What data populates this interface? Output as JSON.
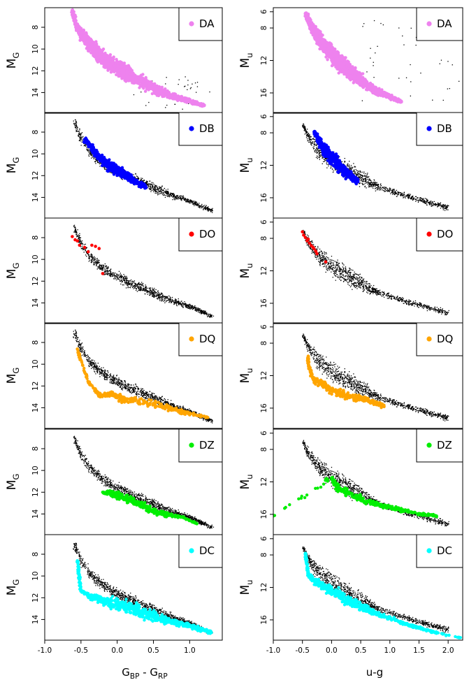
{
  "figure": {
    "left_x_label": {
      "base": "G",
      "sub1": "BP",
      "sep": " - ",
      "base2": "G",
      "sub2": "RP"
    },
    "right_x_label": "u-g",
    "left_y_label": {
      "base": "M",
      "sub": "G"
    },
    "right_y_label": {
      "base": "M",
      "sub": "u"
    }
  },
  "chart_data": [
    {
      "type": "scatter",
      "panel": "left",
      "class": "DA",
      "color": "#ee82ee",
      "show_background": false,
      "xlabel": "",
      "ylabel": "M_G",
      "xlim": [
        -1.0,
        1.45
      ],
      "ylim": [
        15.9,
        6.2
      ],
      "xticks": [],
      "yticks": [
        8,
        10,
        12,
        14
      ],
      "ytick_labels": [
        "8",
        "10",
        "12",
        "14"
      ],
      "legend": "DA",
      "legend_position": "top-right",
      "x": [
        -0.62,
        -0.58,
        -0.55,
        -0.5,
        -0.45,
        -0.4,
        -0.35,
        -0.3,
        -0.25,
        -0.2,
        -0.15,
        -0.1,
        -0.05,
        0.0,
        0.05,
        0.1,
        0.15,
        0.2,
        0.3,
        0.4,
        0.5,
        0.6,
        0.7,
        0.8,
        0.9,
        1.0,
        1.1,
        1.2
      ],
      "y": [
        6.6,
        7.4,
        8.1,
        8.6,
        9.0,
        9.4,
        9.8,
        10.2,
        10.5,
        10.8,
        11.1,
        11.3,
        11.5,
        11.7,
        11.9,
        12.1,
        12.3,
        12.5,
        12.9,
        13.2,
        13.6,
        13.9,
        14.2,
        14.4,
        14.6,
        14.8,
        15.0,
        15.2
      ],
      "spread": [
        0.5,
        0.6,
        0.7,
        0.8,
        0.9,
        1.0,
        1.0,
        1.0,
        1.0,
        1.0,
        1.0,
        1.0,
        1.0,
        1.0,
        1.0,
        1.0,
        1.0,
        0.9,
        0.8,
        0.8,
        0.7,
        0.6,
        0.5,
        0.4,
        0.3,
        0.3,
        0.2,
        0.2
      ]
    },
    {
      "type": "scatter",
      "panel": "right",
      "class": "DA",
      "color": "#ee82ee",
      "show_background": false,
      "xlabel": "",
      "ylabel": "M_u",
      "xlim": [
        -1.0,
        2.25
      ],
      "ylim": [
        18.5,
        5.5
      ],
      "xticks": [],
      "yticks": [
        6,
        8,
        12,
        16
      ],
      "ytick_labels": [
        "6",
        "8",
        "12",
        "16"
      ],
      "legend": "DA",
      "legend_position": "top-right",
      "x": [
        -0.45,
        -0.4,
        -0.35,
        -0.3,
        -0.25,
        -0.2,
        -0.15,
        -0.1,
        -0.05,
        0.0,
        0.05,
        0.1,
        0.15,
        0.2,
        0.25,
        0.3,
        0.35,
        0.4,
        0.45,
        0.5,
        0.6,
        0.7,
        0.8,
        0.9,
        1.0,
        1.1,
        1.2
      ],
      "y": [
        6.2,
        7.0,
        7.8,
        8.5,
        9.0,
        9.5,
        10.0,
        10.4,
        10.8,
        11.2,
        11.6,
        12.0,
        12.3,
        12.6,
        12.9,
        13.2,
        13.5,
        13.8,
        14.1,
        14.4,
        15.0,
        15.5,
        15.9,
        16.2,
        16.5,
        16.8,
        17.1
      ],
      "spread": [
        0.6,
        0.8,
        1.0,
        1.2,
        1.4,
        1.5,
        1.6,
        1.6,
        1.6,
        1.6,
        1.6,
        1.6,
        1.6,
        1.5,
        1.5,
        1.4,
        1.4,
        1.3,
        1.2,
        1.1,
        0.9,
        0.7,
        0.6,
        0.5,
        0.4,
        0.3,
        0.3
      ]
    },
    {
      "type": "scatter",
      "panel": "left",
      "class": "DB",
      "color": "#0000ff",
      "show_background": true,
      "xlabel": "",
      "ylabel": "M_G",
      "xlim": [
        -1.0,
        1.45
      ],
      "ylim": [
        15.9,
        6.2
      ],
      "xticks": [],
      "yticks": [
        8,
        10,
        12,
        14
      ],
      "ytick_labels": [
        "8",
        "10",
        "12",
        "14"
      ],
      "legend": "DB",
      "legend_position": "top-right",
      "x": [
        -0.45,
        -0.4,
        -0.35,
        -0.3,
        -0.25,
        -0.2,
        -0.15,
        -0.1,
        -0.05,
        0.0,
        0.05,
        0.1,
        0.15,
        0.2,
        0.3,
        0.4
      ],
      "y": [
        8.7,
        9.0,
        9.5,
        9.9,
        10.3,
        10.6,
        10.9,
        11.1,
        11.3,
        11.5,
        11.7,
        11.9,
        12.1,
        12.3,
        12.7,
        13.1
      ],
      "spread": [
        0.3,
        0.4,
        0.5,
        0.6,
        0.6,
        0.6,
        0.6,
        0.6,
        0.6,
        0.6,
        0.6,
        0.6,
        0.5,
        0.5,
        0.4,
        0.3
      ]
    },
    {
      "type": "scatter",
      "panel": "right",
      "class": "DB",
      "color": "#0000ff",
      "show_background": true,
      "xlabel": "",
      "ylabel": "M_u",
      "xlim": [
        -1.0,
        2.25
      ],
      "ylim": [
        18.5,
        5.5
      ],
      "xticks": [],
      "yticks": [
        6,
        8,
        12,
        16
      ],
      "ytick_labels": [
        "6",
        "8",
        "12",
        "16"
      ],
      "legend": "DB",
      "legend_position": "top-right",
      "x": [
        -0.3,
        -0.25,
        -0.2,
        -0.15,
        -0.1,
        -0.05,
        0.0,
        0.05,
        0.1,
        0.15,
        0.2,
        0.25,
        0.3,
        0.35,
        0.4,
        0.45
      ],
      "y": [
        7.9,
        8.5,
        9.2,
        9.8,
        10.2,
        10.6,
        11.0,
        11.4,
        11.8,
        12.2,
        12.6,
        12.9,
        13.2,
        13.5,
        13.8,
        14.0
      ],
      "spread": [
        0.4,
        0.6,
        0.8,
        1.0,
        1.1,
        1.2,
        1.3,
        1.3,
        1.3,
        1.2,
        1.1,
        1.0,
        0.9,
        0.7,
        0.6,
        0.4
      ]
    },
    {
      "type": "scatter",
      "panel": "left",
      "class": "DO",
      "color": "#ff0000",
      "show_background": true,
      "xlabel": "",
      "ylabel": "M_G",
      "xlim": [
        -1.0,
        1.45
      ],
      "ylim": [
        15.9,
        6.2
      ],
      "xticks": [],
      "yticks": [
        8,
        10,
        12,
        14
      ],
      "ytick_labels": [
        "8",
        "10",
        "12",
        "14"
      ],
      "legend": "DO",
      "legend_position": "top-right",
      "x": [
        -0.62,
        -0.58,
        -0.55,
        -0.52,
        -0.45,
        -0.4,
        -0.35,
        -0.3,
        -0.25,
        -0.2
      ],
      "y": [
        7.9,
        8.2,
        8.3,
        8.7,
        8.9,
        9.3,
        8.7,
        8.8,
        9.0,
        11.3
      ]
    },
    {
      "type": "scatter",
      "panel": "right",
      "class": "DO",
      "color": "#ff0000",
      "show_background": true,
      "xlabel": "",
      "ylabel": "M_u",
      "xlim": [
        -1.0,
        2.25
      ],
      "ylim": [
        18.5,
        5.5
      ],
      "xticks": [],
      "yticks": [
        6,
        8,
        12,
        16
      ],
      "ytick_labels": [
        "6",
        "8",
        "12",
        "16"
      ],
      "legend": "DO",
      "legend_position": "top-right",
      "x": [
        -0.5,
        -0.48,
        -0.45,
        -0.42,
        -0.4,
        -0.38,
        -0.35,
        -0.32,
        -0.3,
        -0.27,
        -0.25,
        -0.1
      ],
      "y": [
        7.2,
        7.6,
        7.9,
        8.3,
        8.1,
        8.6,
        8.9,
        9.1,
        9.3,
        9.6,
        9.9,
        10.9
      ]
    },
    {
      "type": "scatter",
      "panel": "left",
      "class": "DQ",
      "color": "#ffa500",
      "show_background": true,
      "xlabel": "",
      "ylabel": "M_G",
      "xlim": [
        -1.0,
        1.45
      ],
      "ylim": [
        15.9,
        6.2
      ],
      "xticks": [],
      "yticks": [
        8,
        10,
        12,
        14
      ],
      "ytick_labels": [
        "8",
        "10",
        "12",
        "14"
      ],
      "legend": "DQ",
      "legend_position": "top-right",
      "x": [
        -0.55,
        -0.45,
        -0.4,
        -0.3,
        -0.25,
        -0.2,
        -0.15,
        -0.1,
        -0.05,
        0.0,
        0.05,
        0.1,
        0.2,
        0.3,
        0.4,
        0.5,
        0.6,
        0.7,
        0.8,
        0.9,
        1.0,
        1.1,
        1.25
      ],
      "y": [
        8.6,
        10.7,
        11.6,
        12.4,
        12.8,
        12.9,
        12.8,
        12.7,
        12.8,
        13.0,
        13.1,
        13.2,
        13.3,
        13.4,
        13.5,
        13.6,
        13.8,
        14.0,
        14.2,
        14.4,
        14.5,
        14.7,
        14.9
      ],
      "spread": [
        0.1,
        0.2,
        0.3,
        0.3,
        0.3,
        0.3,
        0.3,
        0.3,
        0.3,
        0.3,
        0.4,
        0.4,
        0.4,
        0.5,
        0.5,
        0.5,
        0.4,
        0.4,
        0.3,
        0.3,
        0.2,
        0.2,
        0.1
      ]
    },
    {
      "type": "scatter",
      "panel": "right",
      "class": "DQ",
      "color": "#ffa500",
      "show_background": true,
      "xlabel": "",
      "ylabel": "M_u",
      "xlim": [
        -1.0,
        2.25
      ],
      "ylim": [
        18.5,
        5.5
      ],
      "xticks": [],
      "yticks": [
        6,
        8,
        12,
        16
      ],
      "ytick_labels": [
        "6",
        "8",
        "12",
        "16"
      ],
      "legend": "DQ",
      "legend_position": "top-right",
      "x": [
        -0.4,
        -0.4,
        -0.35,
        -0.3,
        -0.2,
        -0.1,
        0.0,
        0.1,
        0.2,
        0.3,
        0.4,
        0.5,
        0.6,
        0.7,
        0.8,
        0.9
      ],
      "y": [
        9.6,
        10.5,
        11.8,
        12.5,
        12.9,
        13.3,
        13.8,
        14.1,
        14.3,
        14.5,
        14.7,
        14.8,
        15.0,
        15.2,
        15.5,
        15.8
      ],
      "spread": [
        0.2,
        0.3,
        0.4,
        0.5,
        0.6,
        0.7,
        0.7,
        0.7,
        0.7,
        0.7,
        0.7,
        0.6,
        0.6,
        0.5,
        0.4,
        0.3
      ]
    },
    {
      "type": "scatter",
      "panel": "left",
      "class": "DZ",
      "color": "#00ee00",
      "show_background": true,
      "xlabel": "",
      "ylabel": "M_G",
      "xlim": [
        -1.0,
        1.45
      ],
      "ylim": [
        15.9,
        6.2
      ],
      "xticks": [],
      "yticks": [
        8,
        10,
        12,
        14
      ],
      "ytick_labels": [
        "8",
        "10",
        "12",
        "14"
      ],
      "legend": "DZ",
      "legend_position": "top-right",
      "x": [
        -0.2,
        -0.1,
        0.0,
        0.1,
        0.2,
        0.3,
        0.4,
        0.5,
        0.6,
        0.7,
        0.9,
        1.1
      ],
      "y": [
        12.0,
        12.1,
        12.3,
        12.5,
        12.8,
        13.1,
        13.4,
        13.7,
        13.9,
        14.1,
        14.3,
        14.9
      ],
      "spread": [
        0.3,
        0.4,
        0.5,
        0.5,
        0.5,
        0.5,
        0.5,
        0.4,
        0.4,
        0.3,
        0.1,
        0.1
      ]
    },
    {
      "type": "scatter",
      "panel": "right",
      "class": "DZ",
      "color": "#00ee00",
      "show_background": true,
      "xlabel": "",
      "ylabel": "M_u",
      "xlim": [
        -1.0,
        2.25
      ],
      "ylim": [
        18.5,
        5.5
      ],
      "xticks": [],
      "yticks": [
        6,
        8,
        12,
        16
      ],
      "ytick_labels": [
        "6",
        "8",
        "12",
        "16"
      ],
      "legend": "DZ",
      "legend_position": "top-right",
      "x": [
        -1.0,
        0.0,
        0.05,
        0.1,
        0.2,
        0.3,
        0.4,
        0.5,
        0.6,
        0.7,
        0.8,
        0.9,
        1.0,
        1.1,
        1.2,
        1.3,
        1.4,
        1.5,
        1.6,
        1.7,
        1.8
      ],
      "y": [
        16.2,
        11.5,
        12.2,
        12.6,
        13.1,
        13.5,
        13.8,
        14.1,
        14.4,
        14.6,
        14.8,
        15.0,
        15.1,
        15.3,
        15.5,
        15.6,
        15.8,
        15.9,
        16.0,
        16.1,
        16.2
      ],
      "spread": [
        0,
        0.6,
        0.8,
        0.8,
        0.8,
        0.7,
        0.7,
        0.6,
        0.5,
        0.5,
        0.4,
        0.4,
        0.3,
        0.3,
        0.3,
        0.3,
        0.3,
        0.3,
        0.2,
        0.2,
        0.2
      ]
    },
    {
      "type": "scatter",
      "panel": "left",
      "class": "DC",
      "color": "#00ffff",
      "show_background": true,
      "xlabel": "G_BP - G_RP",
      "ylabel": "M_G",
      "xlim": [
        -1.0,
        1.45
      ],
      "ylim": [
        15.9,
        6.2
      ],
      "xticks": [
        -1.0,
        -0.5,
        0.0,
        0.5,
        1.0
      ],
      "xtick_labels": [
        "-1.0",
        "-0.5",
        "0.0",
        "0.5",
        "1.0"
      ],
      "yticks": [
        8,
        10,
        12,
        14
      ],
      "ytick_labels": [
        "8",
        "10",
        "12",
        "14"
      ],
      "legend": "DC",
      "legend_position": "top-right",
      "x": [
        -0.55,
        -0.5,
        -0.4,
        -0.3,
        -0.2,
        -0.1,
        0.0,
        0.1,
        0.2,
        0.3,
        0.4,
        0.5,
        0.6,
        0.7,
        0.8,
        0.9,
        1.0,
        1.1,
        1.2,
        1.3
      ],
      "y": [
        8.6,
        11.4,
        11.8,
        12.0,
        12.2,
        12.4,
        12.6,
        12.8,
        13.0,
        13.2,
        13.5,
        13.7,
        13.9,
        14.1,
        14.3,
        14.4,
        14.6,
        14.8,
        15.0,
        15.2
      ],
      "spread": [
        0.1,
        0.2,
        0.3,
        0.4,
        0.6,
        0.8,
        0.9,
        0.9,
        0.9,
        0.8,
        0.7,
        0.6,
        0.5,
        0.4,
        0.4,
        0.3,
        0.3,
        0.3,
        0.2,
        0.2
      ]
    },
    {
      "type": "scatter",
      "panel": "right",
      "class": "DC",
      "color": "#00ffff",
      "show_background": true,
      "xlabel": "u-g",
      "ylabel": "M_u",
      "xlim": [
        -1.0,
        2.25
      ],
      "ylim": [
        18.5,
        5.5
      ],
      "xticks": [
        -1.0,
        -0.5,
        0.0,
        0.5,
        1.0,
        1.5,
        2.0
      ],
      "xtick_labels": [
        "-1.0",
        "-0.5",
        "0.0",
        "0.5",
        "1.0",
        "1.5",
        "2.0"
      ],
      "yticks": [
        6,
        8,
        12,
        16
      ],
      "ytick_labels": [
        "6",
        "8",
        "12",
        "16"
      ],
      "legend": "DC",
      "legend_position": "top-right",
      "x": [
        -0.45,
        -0.4,
        -0.3,
        -0.2,
        -0.1,
        0.0,
        0.1,
        0.2,
        0.3,
        0.4,
        0.5,
        0.6,
        0.7,
        0.8,
        1.0,
        1.2,
        1.4,
        1.6,
        1.8,
        2.2
      ],
      "y": [
        7.8,
        10.5,
        11.2,
        11.6,
        12.0,
        12.4,
        12.8,
        13.2,
        13.6,
        14.0,
        14.4,
        14.7,
        15.0,
        15.3,
        15.8,
        16.3,
        16.8,
        17.2,
        17.6,
        18.2
      ],
      "spread": [
        0.1,
        0.4,
        0.6,
        0.8,
        0.9,
        1.0,
        1.0,
        1.0,
        0.9,
        0.8,
        0.7,
        0.6,
        0.5,
        0.4,
        0.3,
        0.3,
        0.2,
        0.2,
        0.2,
        0.1
      ]
    }
  ]
}
